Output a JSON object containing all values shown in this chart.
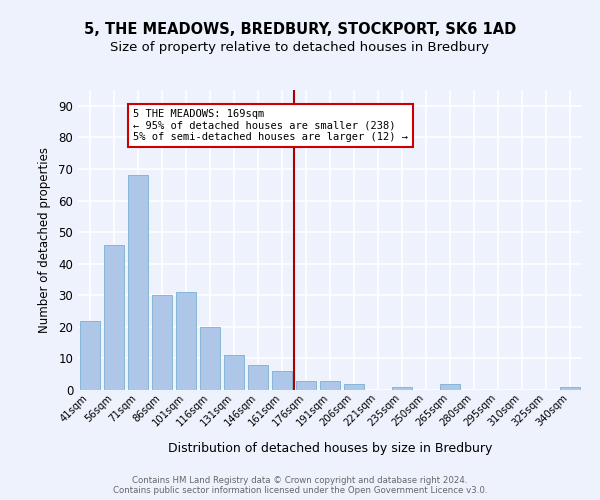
{
  "title1": "5, THE MEADOWS, BREDBURY, STOCKPORT, SK6 1AD",
  "title2": "Size of property relative to detached houses in Bredbury",
  "xlabel": "Distribution of detached houses by size in Bredbury",
  "ylabel": "Number of detached properties",
  "footer": "Contains HM Land Registry data © Crown copyright and database right 2024.\nContains public sector information licensed under the Open Government Licence v3.0.",
  "categories": [
    "41sqm",
    "56sqm",
    "71sqm",
    "86sqm",
    "101sqm",
    "116sqm",
    "131sqm",
    "146sqm",
    "161sqm",
    "176sqm",
    "191sqm",
    "206sqm",
    "221sqm",
    "235sqm",
    "250sqm",
    "265sqm",
    "280sqm",
    "295sqm",
    "310sqm",
    "325sqm",
    "340sqm"
  ],
  "values": [
    22,
    46,
    68,
    30,
    31,
    20,
    11,
    8,
    6,
    3,
    3,
    2,
    0,
    1,
    0,
    2,
    0,
    0,
    0,
    0,
    1
  ],
  "bar_color": "#aec6e8",
  "bar_edge_color": "#7bafd4",
  "vline_x": 8.5,
  "vline_color": "#aa0000",
  "annotation_title": "5 THE MEADOWS: 169sqm",
  "annotation_line1": "← 95% of detached houses are smaller (238)",
  "annotation_line2": "5% of semi-detached houses are larger (12) →",
  "annotation_box_color": "#ffffff",
  "annotation_box_edge": "#cc0000",
  "ylim": [
    0,
    95
  ],
  "yticks": [
    0,
    10,
    20,
    30,
    40,
    50,
    60,
    70,
    80,
    90
  ],
  "bg_color": "#eef2fc",
  "plot_bg_color": "#eef2fc",
  "grid_color": "#ffffff",
  "title1_fontsize": 10.5,
  "title2_fontsize": 9.5
}
